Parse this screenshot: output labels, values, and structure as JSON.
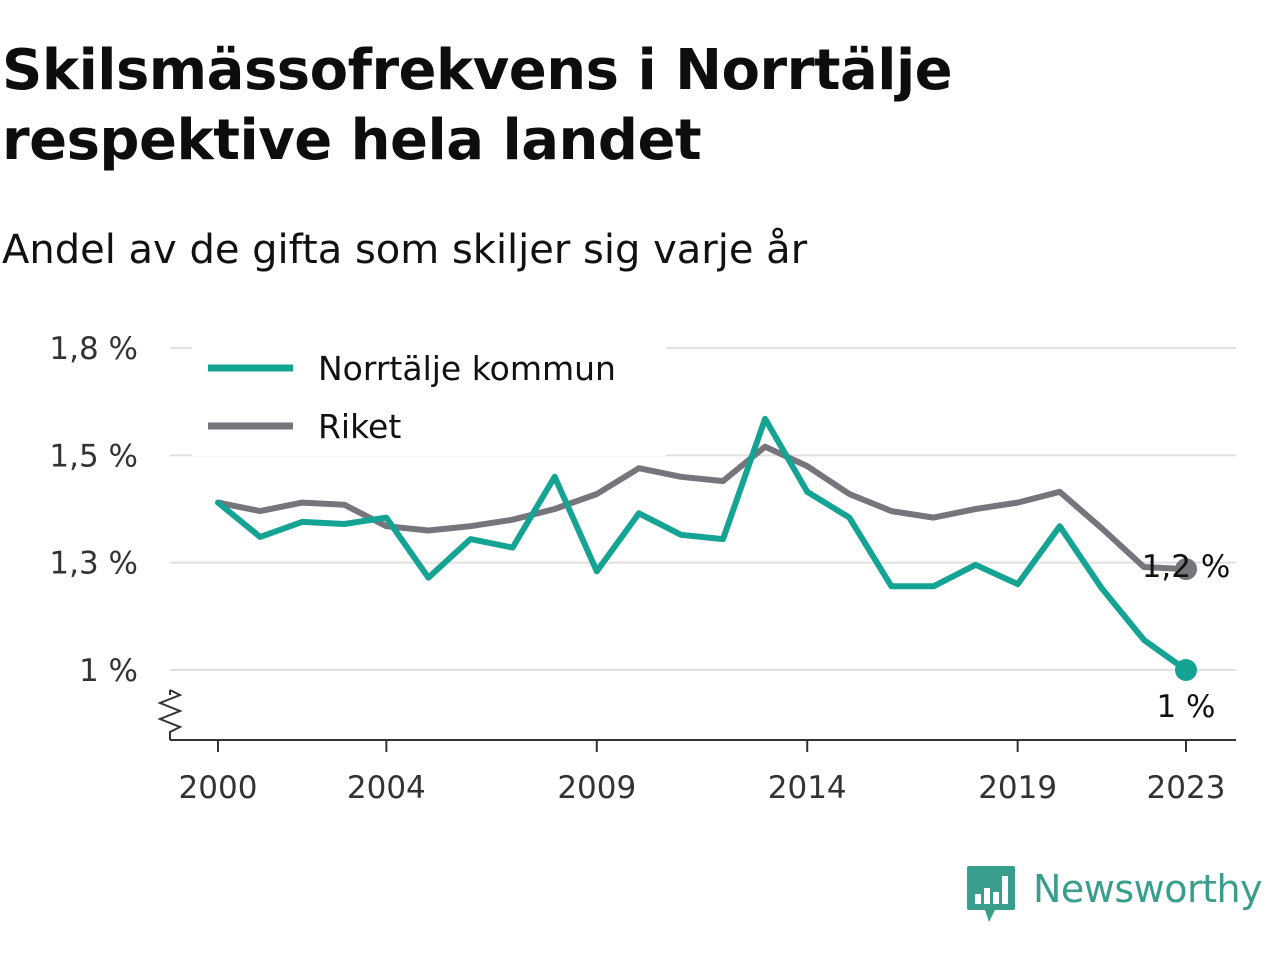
{
  "title_line1": "Skilsmässofrekvens i Norrtälje",
  "title_line2": "respektive hela landet",
  "subtitle": "Andel av de gifta som skiljer sig varje år",
  "brand": "Newsworthy",
  "colors": {
    "norrtalje": "#15a393",
    "riket": "#76757b",
    "grid": "#e0e0e0",
    "axis": "#333333",
    "brand": "#3a9e8c"
  },
  "chart_data": {
    "type": "line",
    "x": [
      2000,
      2001,
      2002,
      2003,
      2004,
      2005,
      2006,
      2007,
      2008,
      2009,
      2010,
      2011,
      2012,
      2013,
      2014,
      2015,
      2016,
      2017,
      2018,
      2019,
      2020,
      2021,
      2022,
      2023
    ],
    "series": [
      {
        "name": "Norrtälje kommun",
        "color": "#15a393",
        "values": [
          1.39,
          1.31,
          1.345,
          1.34,
          1.355,
          1.215,
          1.305,
          1.285,
          1.45,
          1.23,
          1.365,
          1.315,
          1.305,
          1.585,
          1.415,
          1.355,
          1.195,
          1.195,
          1.245,
          1.2,
          1.335,
          1.19,
          1.07,
          1.0
        ]
      },
      {
        "name": "Riket",
        "color": "#76757b",
        "values": [
          1.39,
          1.37,
          1.39,
          1.385,
          1.335,
          1.325,
          1.335,
          1.35,
          1.375,
          1.41,
          1.47,
          1.45,
          1.44,
          1.52,
          1.475,
          1.41,
          1.37,
          1.355,
          1.375,
          1.39,
          1.415,
          1.33,
          1.24,
          1.235
        ]
      }
    ],
    "y_ticks": [
      {
        "value": 1.0,
        "label": "1 %"
      },
      {
        "value": 1.25,
        "label": "1,3 %"
      },
      {
        "value": 1.5,
        "label": "1,5 %"
      },
      {
        "value": 1.75,
        "label": "1,8 %"
      }
    ],
    "x_ticks": [
      {
        "value": 2000,
        "label": "2000"
      },
      {
        "value": 2004,
        "label": "2004"
      },
      {
        "value": 2009,
        "label": "2009"
      },
      {
        "value": 2014,
        "label": "2014"
      },
      {
        "value": 2019,
        "label": "2019"
      },
      {
        "value": 2023,
        "label": "2023"
      }
    ],
    "end_labels": {
      "norrtalje": "1 %",
      "riket": "1,2 %"
    },
    "ylim": [
      0.85,
      1.75
    ],
    "xlim": [
      2000,
      2023
    ],
    "y_axis_break": true,
    "grid": true,
    "legend_position": "top-left"
  }
}
